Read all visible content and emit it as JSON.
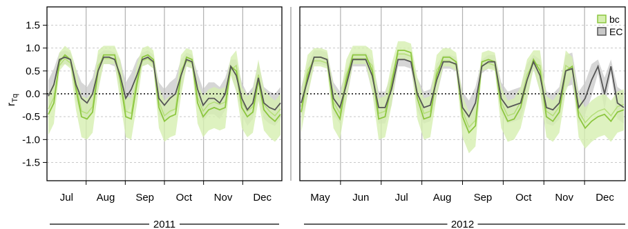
{
  "chart_data": {
    "type": "line",
    "ylabel": "r",
    "ylabel_sub": "Tq",
    "ylim": [
      -1.9,
      1.9
    ],
    "yticks": [
      "1.5",
      "1.0",
      "0.5",
      "0.0",
      "-0.5",
      "-1.0",
      "-1.5"
    ],
    "ytick_values": [
      1.5,
      1.0,
      0.5,
      0.0,
      -0.5,
      -1.0,
      -1.5
    ],
    "zero_line": "dotted",
    "grid": "horizontal dashed",
    "legend": {
      "position": "top-right",
      "entries": [
        "bc",
        "EC"
      ]
    },
    "colors": {
      "bc": "#8cc63f",
      "bc_band": "#d6efb0",
      "EC": "#555555",
      "EC_band": "#c8c8c8"
    },
    "panels": [
      {
        "year": "2011",
        "months": [
          "Jul",
          "Aug",
          "Sep",
          "Oct",
          "Nov",
          "Dec"
        ],
        "series": [
          {
            "name": "bc",
            "values": [
              -0.45,
              -0.2,
              0.7,
              0.85,
              0.75,
              0.1,
              -0.5,
              -0.55,
              -0.4,
              0.5,
              0.85,
              0.85,
              0.85,
              0.3,
              -0.5,
              -0.55,
              0.2,
              0.8,
              0.85,
              0.75,
              -0.3,
              -0.6,
              -0.5,
              -0.45,
              0.4,
              0.8,
              0.75,
              -0.2,
              -0.5,
              -0.35,
              -0.3,
              -0.35,
              -0.3,
              0.6,
              0.5,
              -0.3,
              -0.5,
              -0.4,
              0.3,
              -0.35,
              -0.5,
              -0.6,
              -0.45
            ]
          },
          {
            "name": "EC",
            "values": [
              -0.05,
              0.2,
              0.75,
              0.8,
              0.75,
              0.2,
              -0.1,
              -0.2,
              0.0,
              0.5,
              0.8,
              0.8,
              0.75,
              0.4,
              -0.1,
              0.1,
              0.4,
              0.75,
              0.8,
              0.7,
              -0.1,
              -0.25,
              -0.1,
              0.0,
              0.4,
              0.75,
              0.7,
              0.1,
              -0.25,
              -0.1,
              -0.1,
              -0.2,
              0.0,
              0.6,
              0.4,
              -0.1,
              -0.35,
              -0.2,
              0.35,
              -0.2,
              -0.3,
              -0.35,
              -0.2
            ]
          }
        ]
      },
      {
        "year": "2012",
        "months": [
          "May",
          "Jun",
          "Jul",
          "Aug",
          "Sep",
          "Oct",
          "Nov",
          "Dec"
        ],
        "series": [
          {
            "name": "bc",
            "values": [
              -0.4,
              0.4,
              0.8,
              0.8,
              0.75,
              -0.3,
              -0.55,
              0.3,
              0.85,
              0.85,
              0.85,
              0.5,
              -0.55,
              -0.5,
              0.2,
              0.95,
              0.95,
              0.9,
              -0.1,
              -0.55,
              -0.5,
              0.4,
              0.8,
              0.8,
              0.7,
              -0.5,
              -0.85,
              -0.7,
              0.7,
              0.75,
              0.7,
              -0.3,
              -0.6,
              -0.55,
              -0.3,
              0.3,
              0.75,
              0.5,
              -0.5,
              -0.6,
              -0.4,
              0.5,
              0.6,
              -0.5,
              -0.75,
              -0.6,
              -0.5,
              -0.45,
              -0.6,
              -0.4,
              -0.35
            ]
          },
          {
            "name": "EC",
            "values": [
              -0.2,
              0.3,
              0.8,
              0.8,
              0.75,
              -0.1,
              -0.3,
              0.2,
              0.75,
              0.75,
              0.75,
              0.4,
              -0.3,
              -0.3,
              0.1,
              0.75,
              0.75,
              0.7,
              0.0,
              -0.3,
              -0.25,
              0.3,
              0.7,
              0.7,
              0.65,
              -0.3,
              -0.5,
              -0.2,
              0.6,
              0.7,
              0.7,
              -0.1,
              -0.3,
              -0.25,
              -0.2,
              0.3,
              0.7,
              0.4,
              -0.3,
              -0.35,
              -0.2,
              0.5,
              0.55,
              -0.3,
              -0.1,
              0.3,
              0.6,
              0.0,
              0.6,
              -0.2,
              -0.3
            ]
          }
        ]
      }
    ]
  }
}
